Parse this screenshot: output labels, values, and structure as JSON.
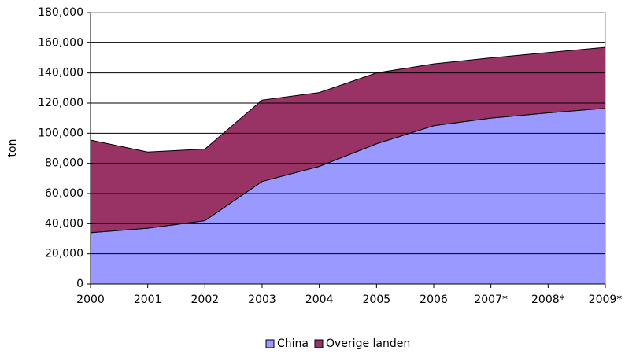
{
  "chart_data": {
    "type": "stacked_area",
    "y_label": "ton",
    "categories": [
      "2000",
      "2001",
      "2002",
      "2003",
      "2004",
      "2005",
      "2006",
      "2007*",
      "2008*",
      "2009*"
    ],
    "series": [
      {
        "name": "China",
        "color": "#9999ff",
        "values": [
          34000,
          37000,
          42000,
          68000,
          78000,
          93000,
          105000,
          110000,
          113500,
          116500
        ]
      },
      {
        "name": "Overige landen",
        "color": "#993366",
        "values": [
          61500,
          50500,
          47500,
          54000,
          49000,
          47000,
          41000,
          40000,
          40000,
          40500
        ]
      }
    ],
    "ylim": [
      0,
      180000
    ],
    "yticks": [
      0,
      {
        "value": 20000,
        "label": "20,000"
      },
      {
        "value": 40000,
        "label": "40,000"
      },
      {
        "value": 60000,
        "label": "60,000"
      },
      {
        "value": 80000,
        "label": "80,000"
      },
      {
        "value": 100000,
        "label": "100,000"
      },
      {
        "value": 120000,
        "label": "120,000"
      },
      {
        "value": 140000,
        "label": "140,000"
      },
      {
        "value": 160000,
        "label": "160,000"
      },
      {
        "value": 180000,
        "label": "180,000"
      }
    ],
    "grid": true,
    "legend": "bottom"
  }
}
